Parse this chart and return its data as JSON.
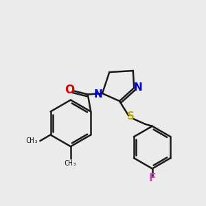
{
  "bg_color": "#ebebeb",
  "bond_color": "#1a1a1a",
  "O_color": "#dd0000",
  "N_color": "#0000cc",
  "S_color": "#bbaa00",
  "F_color": "#cc44bb",
  "lw": 1.8,
  "figsize": [
    3.0,
    3.0
  ],
  "dpi": 100,
  "xlim": [
    0,
    10
  ],
  "ylim": [
    0,
    10
  ]
}
